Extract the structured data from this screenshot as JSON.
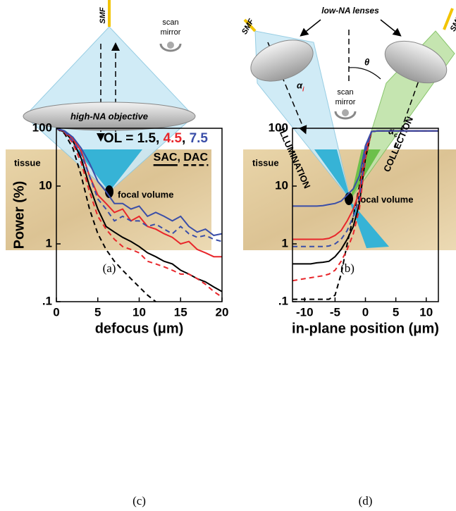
{
  "figure": {
    "a": {
      "fiber": "SMF",
      "mirror_1": "scan",
      "mirror_2": "mirror",
      "objective": "high-NA objective",
      "tissue": "tissue",
      "focal": "focal volume",
      "caption": "(a)"
    },
    "b": {
      "lenses": "low-NA lenses",
      "fiber_left": "SMF",
      "fiber_right": "SMF",
      "theta": "θ",
      "alpha_i": "α",
      "alpha_i_sub": "i",
      "alpha_c": "α",
      "alpha_c_sub": "c",
      "mirror_1": "scan",
      "mirror_2": "mirror",
      "illumination": "ILLUMINATION",
      "collection": "COLLECTION",
      "tissue": "tissue",
      "focal": "focal volume",
      "caption": "(b)"
    }
  },
  "chart_data": [
    {
      "type": "line",
      "caption": "(c)",
      "y_label": "Power (%)",
      "x_label": "defocus (μm)",
      "x": [
        0,
        1,
        2,
        3,
        4,
        5,
        6,
        7,
        8,
        9,
        10,
        11,
        12,
        13,
        14,
        15,
        16,
        17,
        18,
        19,
        20
      ],
      "xlim": [
        0,
        20
      ],
      "xticks": [
        0,
        5,
        10,
        15,
        20
      ],
      "ylim": [
        0.1,
        100
      ],
      "yticks": [
        100,
        10,
        1,
        {
          "value": 0.1,
          "label": ".1"
        }
      ],
      "log_y": true,
      "legend": {
        "parts": [
          {
            "text": "OL = ",
            "color": "#000000"
          },
          {
            "text": "1.5",
            "color": "#000000"
          },
          {
            "text": ", ",
            "color": "#000000"
          },
          {
            "text": "4.5",
            "color": "#e8262b"
          },
          {
            "text": ", ",
            "color": "#000000"
          },
          {
            "text": "7.5",
            "color": "#3a4ea8"
          }
        ],
        "styles": [
          {
            "text": "SAC",
            "dashed": false
          },
          {
            "text": ", "
          },
          {
            "text": "DAC",
            "dashed": true
          }
        ]
      },
      "series": [
        {
          "color": "#000000",
          "dashed": false,
          "values": [
            100,
            85,
            60,
            30,
            10,
            4,
            2,
            1.6,
            1.3,
            1.1,
            0.9,
            0.7,
            0.6,
            0.5,
            0.45,
            0.35,
            0.3,
            0.25,
            0.22,
            0.18,
            0.15
          ]
        },
        {
          "color": "#000000",
          "dashed": true,
          "values": [
            100,
            80,
            45,
            15,
            4,
            1.5,
            0.8,
            0.5,
            0.35,
            0.25,
            0.18,
            0.13,
            0.1,
            null,
            null,
            null,
            null,
            null,
            null,
            null,
            null
          ]
        },
        {
          "color": "#e8262b",
          "dashed": false,
          "values": [
            100,
            88,
            65,
            40,
            15,
            7,
            5,
            3.5,
            4,
            2.5,
            3,
            2,
            1.8,
            1.5,
            1.3,
            1,
            1.1,
            0.8,
            0.7,
            0.6,
            0.6
          ]
        },
        {
          "color": "#e8262b",
          "dashed": true,
          "values": [
            100,
            85,
            55,
            25,
            8,
            3,
            1.8,
            1.2,
            0.9,
            0.8,
            0.7,
            0.5,
            0.45,
            0.4,
            0.35,
            0.3,
            0.3,
            0.25,
            0.2,
            0.15,
            0.12
          ]
        },
        {
          "color": "#3a4ea8",
          "dashed": false,
          "values": [
            100,
            90,
            70,
            45,
            25,
            12,
            8,
            5,
            5,
            4,
            4.5,
            3,
            3.5,
            3,
            2.5,
            3,
            2,
            1.6,
            1.8,
            1.4,
            1.5
          ]
        },
        {
          "color": "#3a4ea8",
          "dashed": true,
          "values": [
            100,
            88,
            60,
            35,
            15,
            6,
            4,
            2.5,
            3,
            2.5,
            2.5,
            2,
            2.2,
            1.8,
            1.5,
            2,
            1.5,
            1.3,
            1.4,
            1.2,
            1.1
          ]
        }
      ]
    },
    {
      "type": "line",
      "caption": "(d)",
      "x_label": "in-plane position (μm)",
      "x": [
        -12,
        -11,
        -10,
        -9,
        -8,
        -7,
        -6,
        -5,
        -4,
        -3,
        -2,
        -1,
        0,
        1,
        2,
        3,
        4,
        5,
        6,
        7,
        8,
        9,
        10,
        11,
        12
      ],
      "xlim": [
        -12,
        12
      ],
      "xticks": [
        -10,
        -5,
        0,
        5,
        10
      ],
      "ylim": [
        0.1,
        100
      ],
      "yticks": [
        100,
        10,
        1,
        {
          "value": 0.1,
          "label": ".1"
        }
      ],
      "log_y": true,
      "series": [
        {
          "color": "#000000",
          "dashed": false,
          "values": [
            0.45,
            0.45,
            0.45,
            0.45,
            0.47,
            0.48,
            0.5,
            0.6,
            0.8,
            1.2,
            2,
            5,
            30,
            88,
            90,
            90,
            90,
            90,
            90,
            90,
            90,
            90,
            90,
            90,
            90
          ]
        },
        {
          "color": "#000000",
          "dashed": true,
          "values": [
            0.11,
            0.11,
            0.11,
            0.11,
            0.11,
            0.11,
            0.11,
            0.13,
            0.3,
            1,
            3,
            10,
            40,
            88,
            90,
            90,
            90,
            90,
            90,
            90,
            90,
            90,
            90,
            90,
            90
          ]
        },
        {
          "color": "#e8262b",
          "dashed": false,
          "values": [
            1.2,
            1.2,
            1.2,
            1.2,
            1.2,
            1.2,
            1.25,
            1.4,
            1.7,
            2.5,
            4,
            8,
            40,
            88,
            90,
            90,
            90,
            90,
            90,
            90,
            90,
            90,
            90,
            90,
            90
          ]
        },
        {
          "color": "#e8262b",
          "dashed": true,
          "values": [
            0.23,
            0.24,
            0.25,
            0.26,
            0.27,
            0.28,
            0.3,
            0.35,
            0.5,
            0.8,
            1.5,
            4,
            30,
            88,
            90,
            90,
            90,
            90,
            90,
            90,
            90,
            90,
            90,
            90,
            90
          ]
        },
        {
          "color": "#3a4ea8",
          "dashed": false,
          "values": [
            4.5,
            4.5,
            4.5,
            4.5,
            4.5,
            4.6,
            4.8,
            5,
            5.5,
            7,
            9,
            15,
            50,
            88,
            90,
            90,
            90,
            90,
            90,
            90,
            90,
            90,
            90,
            90,
            90
          ]
        },
        {
          "color": "#3a4ea8",
          "dashed": true,
          "values": [
            0.9,
            0.9,
            0.9,
            0.9,
            0.9,
            0.9,
            0.92,
            1,
            1.2,
            1.7,
            3,
            6,
            40,
            88,
            90,
            90,
            90,
            90,
            90,
            90,
            90,
            90,
            90,
            90,
            90
          ]
        }
      ]
    }
  ]
}
